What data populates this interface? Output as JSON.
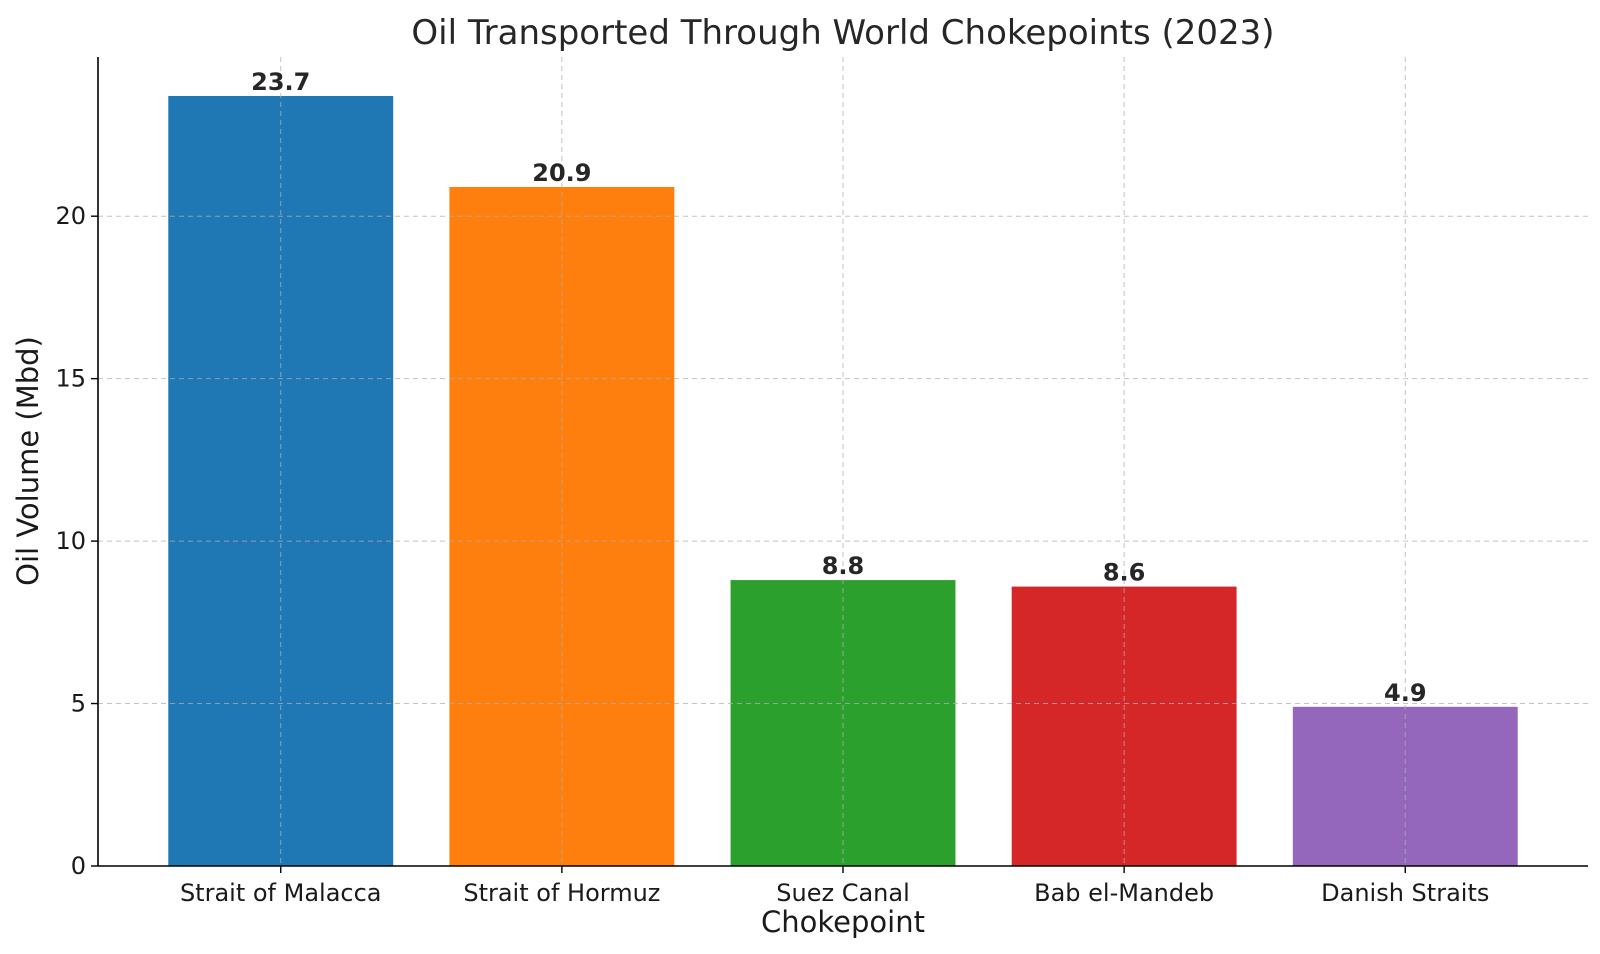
{
  "chart_data": {
    "type": "bar",
    "title": "Oil Transported Through World Chokepoints (2023)",
    "xlabel": "Chokepoint",
    "ylabel": "Oil Volume (Mbd)",
    "categories": [
      "Strait of Malacca",
      "Strait of Hormuz",
      "Suez Canal",
      "Bab el-Mandeb",
      "Danish Straits"
    ],
    "values": [
      23.7,
      20.9,
      8.8,
      8.6,
      4.9
    ],
    "value_labels": [
      "23.7",
      "20.9",
      "8.8",
      "8.6",
      "4.9"
    ],
    "colors": [
      "#1f77b4",
      "#ff7f0e",
      "#2ca02c",
      "#d62728",
      "#9467bd"
    ],
    "ylim": [
      0,
      24.9
    ],
    "yticks": [
      0,
      5,
      10,
      15,
      20
    ],
    "ytick_labels": [
      "0",
      "5",
      "10",
      "15",
      "20"
    ],
    "grid": true,
    "legend": "none"
  }
}
